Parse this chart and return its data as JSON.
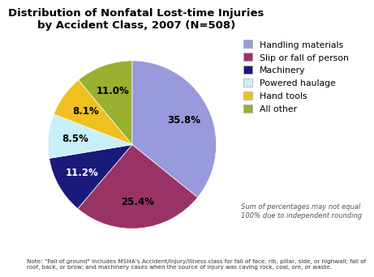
{
  "title": "Distribution of Nonfatal Lost-time Injuries\nby Accident Class, 2007 (N=508)",
  "slices": [
    35.8,
    25.4,
    11.2,
    8.5,
    8.1,
    11.0
  ],
  "labels": [
    "35.8%",
    "25.4%",
    "11.2%",
    "8.5%",
    "8.1%",
    "11.0%"
  ],
  "legend_labels": [
    "Handling materials",
    "Slip or fall of person",
    "Machinery",
    "Powered haulage",
    "Hand tools",
    "All other"
  ],
  "colors": [
    "#9999dd",
    "#993366",
    "#1a1a7a",
    "#c8f0f8",
    "#f0c020",
    "#99b030"
  ],
  "startangle": 90,
  "note": "Note: \"Fall of ground\" includes MSHA's Accident/Injury/Illness class for fall of face, rib, pillar, side, or highwall; fall of\nroof, back, or brow; and machinery cases when the source of injury was caving rock, coal, ore, or waste.",
  "subnote": "Sum of percentages may not equal\n100% due to independent rounding",
  "background_color": "#ffffff",
  "label_colors": [
    "#000000",
    "#000000",
    "#ffffff",
    "#000000",
    "#000000",
    "#000000"
  ]
}
